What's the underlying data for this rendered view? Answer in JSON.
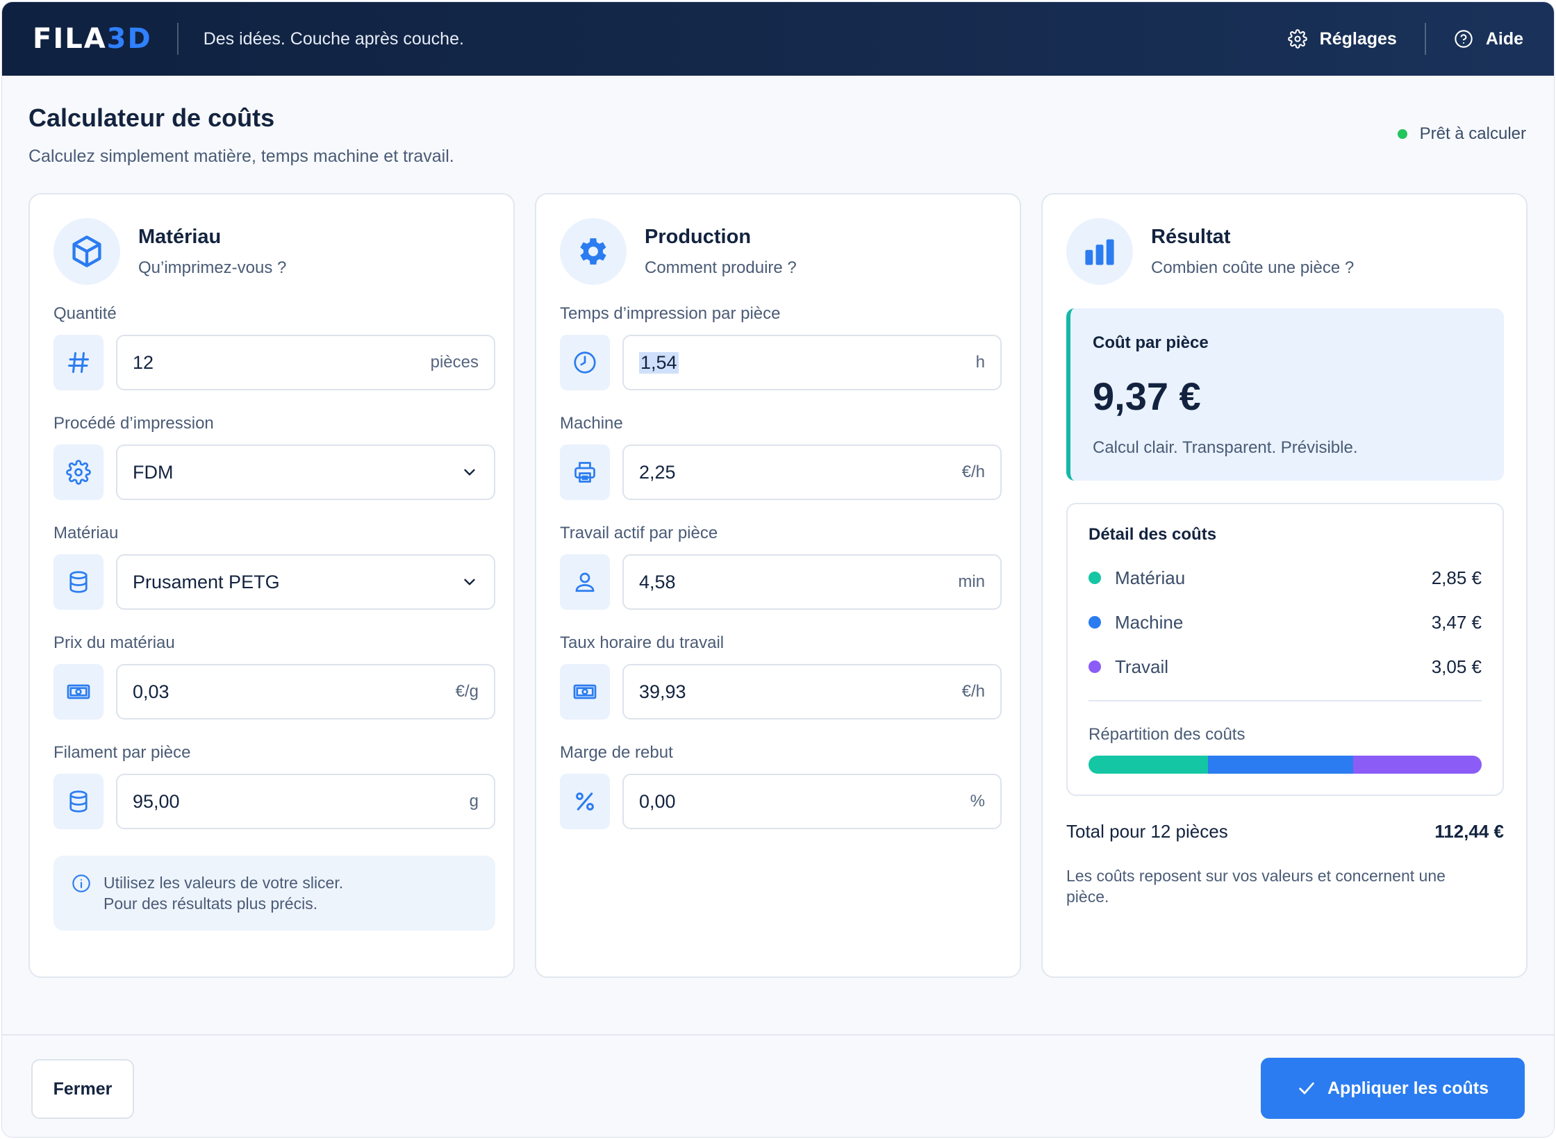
{
  "header": {
    "logo_main": "FILA",
    "logo_accent": "3D",
    "tagline": "Des idées. Couche après couche.",
    "settings_label": "Réglages",
    "help_label": "Aide"
  },
  "page": {
    "title": "Calculateur de coûts",
    "subtitle": "Calculez simplement matière, temps machine et travail.",
    "status": "Prêt à calculer",
    "status_color": "#22c55e"
  },
  "material_panel": {
    "title": "Matériau",
    "subtitle": "Qu’imprimez-vous ?",
    "fields": [
      {
        "label": "Quantité",
        "value": "12",
        "unit": "pièces",
        "icon": "hash-icon"
      },
      {
        "label": "Procédé d’impression",
        "value": "FDM",
        "icon": "gear-icon",
        "type": "select"
      },
      {
        "label": "Matériau",
        "value": "Prusament PETG",
        "icon": "database-icon",
        "type": "select"
      },
      {
        "label": "Prix du matériau",
        "value": "0,03",
        "unit": "€/g",
        "icon": "banknote-icon"
      },
      {
        "label": "Filament par pièce",
        "value": "95,00",
        "unit": "g",
        "icon": "database-icon"
      }
    ],
    "hint_line1": "Utilisez les valeurs de votre slicer.",
    "hint_line2": "Pour des résultats plus précis."
  },
  "production_panel": {
    "title": "Production",
    "subtitle": "Comment produire ?",
    "fields": [
      {
        "label": "Temps d’impression par pièce",
        "value": "1,54",
        "unit": "h",
        "icon": "clock-icon"
      },
      {
        "label": "Machine",
        "value": "2,25",
        "unit": "€/h",
        "icon": "printer-icon"
      },
      {
        "label": "Travail actif par pièce",
        "value": "4,58",
        "unit": "min",
        "icon": "user-icon"
      },
      {
        "label": "Taux horaire du travail",
        "value": "39,93",
        "unit": "€/h",
        "icon": "banknote-icon"
      },
      {
        "label": "Marge de rebut",
        "value": "0,00",
        "unit": "%",
        "icon": "percent-icon"
      }
    ]
  },
  "result_panel": {
    "title": "Résultat",
    "subtitle": "Combien coûte une pièce ?",
    "cost_label": "Coût par pièce",
    "cost_value": "9,37 €",
    "cost_note": "Calcul clair. Transparent. Prévisible.",
    "detail_title": "Détail des coûts",
    "items": [
      {
        "name": "Matériau",
        "value": "2,85 €",
        "color": "#14c6a4"
      },
      {
        "name": "Machine",
        "value": "3,47 €",
        "color": "#2b7cf0"
      },
      {
        "name": "Travail",
        "value": "3,05 €",
        "color": "#8b5cf6"
      }
    ],
    "split_label": "Répartition des coûts",
    "split_fractions": [
      0.304,
      0.37,
      0.326
    ],
    "total_label": "Total pour 12 pièces",
    "total_value": "112,44 €",
    "foot_note": "Les coûts reposent sur vos valeurs et concernent une pièce."
  },
  "footer": {
    "close_label": "Fermer",
    "apply_label": "Appliquer les coûts"
  }
}
